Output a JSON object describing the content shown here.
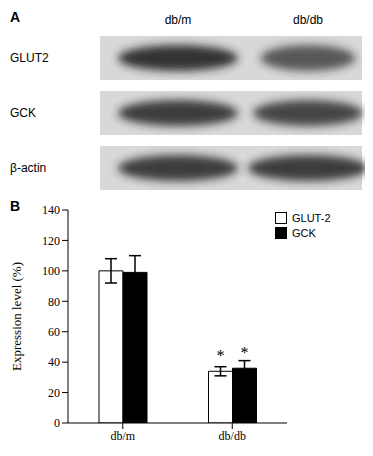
{
  "panel_labels": [
    "A",
    "B"
  ],
  "blot": {
    "lanes": [
      "db/m",
      "db/db"
    ],
    "rows": [
      "GLUT2",
      "GCK",
      "β-actin"
    ]
  },
  "chart_data": {
    "type": "bar",
    "categories": [
      "db/m",
      "db/db"
    ],
    "series": [
      {
        "name": "GLUT-2",
        "color": "#ffffff",
        "values": [
          100,
          34
        ],
        "errors": [
          8,
          3
        ]
      },
      {
        "name": "GCK",
        "color": "#000000",
        "values": [
          99,
          36
        ],
        "errors": [
          11,
          5
        ]
      }
    ],
    "ylabel": "Expression level (%)",
    "ylim": [
      0,
      140
    ],
    "yticks": [
      0,
      20,
      40,
      60,
      80,
      100,
      120,
      140
    ],
    "legend": "upper right",
    "annotations": [
      {
        "text": "*",
        "category": "db/db",
        "series": "GLUT-2"
      },
      {
        "text": "*",
        "category": "db/db",
        "series": "GCK"
      }
    ]
  }
}
